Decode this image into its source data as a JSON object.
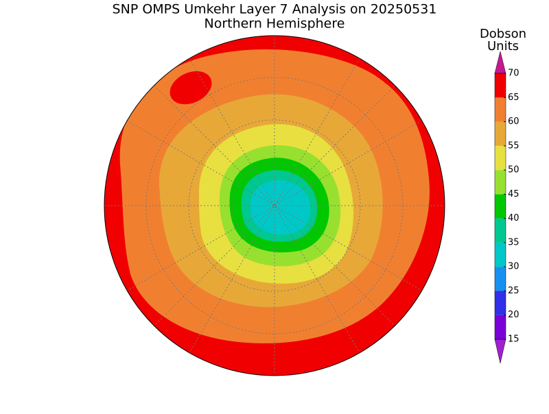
{
  "title": "SNP OMPS Umkehr Layer 7 Analysis on 20250531",
  "subtitle": "Northern Hemisphere",
  "colorbar": {
    "label_lines": [
      "Dobson",
      "Units"
    ],
    "ticks": [
      15,
      20,
      25,
      30,
      35,
      40,
      45,
      50,
      55,
      60,
      65,
      70
    ],
    "colors": [
      "#7a00d8",
      "#3030e8",
      "#1890f0",
      "#00c8c8",
      "#00c890",
      "#00c800",
      "#98e030",
      "#e8e040",
      "#e8a838",
      "#f08030",
      "#f00000"
    ],
    "under_color": "#a020d0",
    "over_color": "#c81890"
  }
}
